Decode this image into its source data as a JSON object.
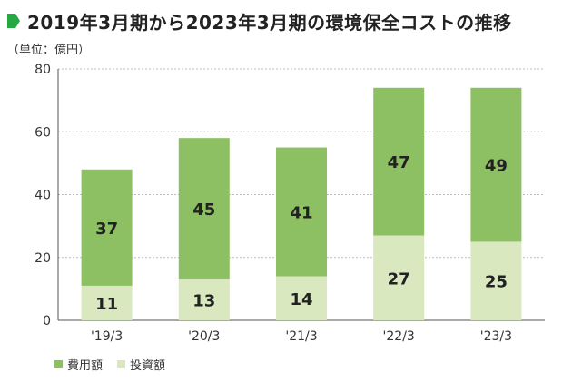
{
  "title": "2019年3月期から2023年3月期の環境保全コストの推移",
  "unit": "（単位：億円）",
  "colors": {
    "accent": "#27a843",
    "cost": "#8dc063",
    "investment": "#d9e8bf",
    "grid": "#bbbbbb",
    "axis": "#555555"
  },
  "legend": [
    {
      "label": "費用額",
      "color": "#8dc063"
    },
    {
      "label": "投資額",
      "color": "#d9e8bf"
    }
  ],
  "chart_data": {
    "type": "bar",
    "stacked": true,
    "categories": [
      "'19/3",
      "'20/3",
      "'21/3",
      "'22/3",
      "'23/3"
    ],
    "series": [
      {
        "name": "投資額",
        "values": [
          11,
          13,
          14,
          27,
          25
        ]
      },
      {
        "name": "費用額",
        "values": [
          37,
          45,
          41,
          47,
          49
        ]
      }
    ],
    "ylim": [
      0,
      80
    ],
    "yticks": [
      0,
      20,
      40,
      60,
      80
    ],
    "grid": true,
    "legend_position": "bottom-left"
  }
}
